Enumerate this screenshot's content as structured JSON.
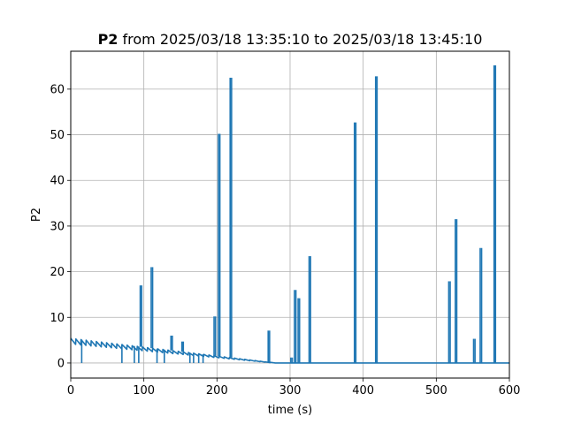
{
  "chart_data": {
    "type": "line",
    "title_bold": "P2",
    "title_rest": "from 2025/03/18 13:35:10 to 2025/03/18 13:45:10",
    "xlabel": "time (s)",
    "ylabel": "P2",
    "xlim": [
      0,
      600
    ],
    "ylim": [
      -3.3,
      68.3
    ],
    "xticks": [
      0,
      100,
      200,
      300,
      400,
      500,
      600
    ],
    "yticks": [
      0,
      10,
      20,
      30,
      40,
      50,
      60
    ],
    "grid": true,
    "color": "#1f77b4",
    "baseline": {
      "x": [
        0,
        280,
        600
      ],
      "y": [
        5.4,
        0,
        0
      ],
      "sawtooth_period": 7,
      "sawtooth_drop": 1.2
    },
    "dips": [
      {
        "x": 15,
        "y": 0
      },
      {
        "x": 70,
        "y": 0
      },
      {
        "x": 87,
        "y": 0
      },
      {
        "x": 93,
        "y": 0
      },
      {
        "x": 118,
        "y": 0
      },
      {
        "x": 128,
        "y": 0
      },
      {
        "x": 163,
        "y": 0
      },
      {
        "x": 168,
        "y": 0
      },
      {
        "x": 175,
        "y": 0
      },
      {
        "x": 181,
        "y": 0
      }
    ],
    "spikes": [
      {
        "x": 96,
        "y": 17
      },
      {
        "x": 111,
        "y": 21
      },
      {
        "x": 138,
        "y": 6
      },
      {
        "x": 153,
        "y": 4.7
      },
      {
        "x": 197,
        "y": 10.2
      },
      {
        "x": 203,
        "y": 50.2
      },
      {
        "x": 219,
        "y": 62.5
      },
      {
        "x": 271,
        "y": 7.1
      },
      {
        "x": 302,
        "y": 1.2
      },
      {
        "x": 307,
        "y": 16
      },
      {
        "x": 312,
        "y": 14.2
      },
      {
        "x": 327,
        "y": 23.4
      },
      {
        "x": 389,
        "y": 52.7
      },
      {
        "x": 418,
        "y": 62.8
      },
      {
        "x": 518,
        "y": 17.9
      },
      {
        "x": 527,
        "y": 31.5
      },
      {
        "x": 552,
        "y": 5.3
      },
      {
        "x": 561,
        "y": 25.2
      },
      {
        "x": 580,
        "y": 65.2
      }
    ]
  }
}
